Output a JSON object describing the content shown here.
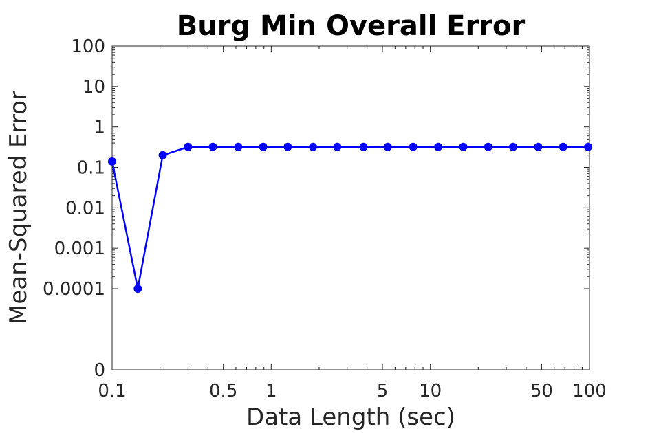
{
  "chart_data": {
    "type": "line",
    "title": "Burg Min Overall Error",
    "xlabel": "Data Length (sec)",
    "ylabel": "Mean-Squared Error",
    "x_scale": "log",
    "y_scale": "log",
    "xlim": [
      0.1,
      100
    ],
    "x_ticks": [
      {
        "value": 0.1,
        "label": "0.1"
      },
      {
        "value": 0.5,
        "label": "0.5"
      },
      {
        "value": 1,
        "label": "1"
      },
      {
        "value": 5,
        "label": "5"
      },
      {
        "value": 10,
        "label": "10"
      },
      {
        "value": 50,
        "label": "50"
      },
      {
        "value": 100,
        "label": "100"
      }
    ],
    "y_ticks": [
      {
        "value": 0,
        "label": "0"
      },
      {
        "value": 0.0001,
        "label": "0.0001"
      },
      {
        "value": 0.001,
        "label": "0.001"
      },
      {
        "value": 0.01,
        "label": "0.01"
      },
      {
        "value": 0.1,
        "label": "0.1"
      },
      {
        "value": 1,
        "label": "1"
      },
      {
        "value": 10,
        "label": "10"
      },
      {
        "value": 100,
        "label": "100"
      }
    ],
    "grid": false,
    "line_color": "#0000ff",
    "series": [
      {
        "x": [
          0.1,
          0.145,
          0.208,
          0.3,
          0.43,
          0.62,
          0.89,
          1.27,
          1.83,
          2.6,
          3.8,
          5.4,
          7.8,
          11.2,
          16.1,
          23.1,
          33.1,
          47.6,
          68.3,
          98
        ],
        "y": [
          0.14,
          0.0001,
          0.2,
          0.32,
          0.32,
          0.32,
          0.32,
          0.32,
          0.32,
          0.32,
          0.32,
          0.32,
          0.32,
          0.32,
          0.32,
          0.32,
          0.32,
          0.32,
          0.32,
          0.32
        ]
      }
    ]
  }
}
